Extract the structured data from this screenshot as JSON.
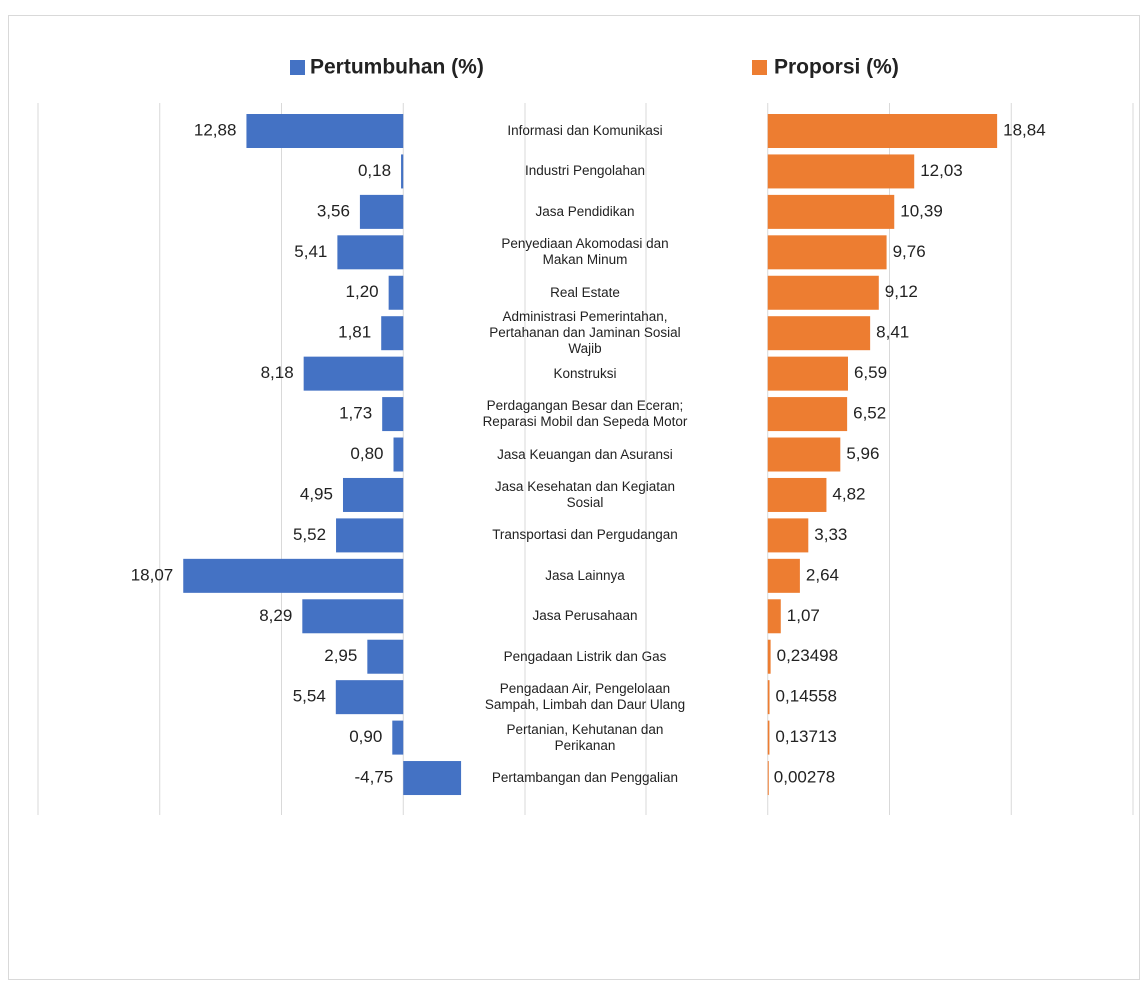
{
  "chart_data": [
    {
      "type": "bar",
      "orientation": "horizontal",
      "xaxis_reversed": true,
      "categories": [
        "Informasi dan Komunikasi",
        "Industri Pengolahan",
        "Jasa Pendidikan",
        "Penyediaan Akomodasi dan Makan Minum",
        "Real Estate",
        "Administrasi Pemerintahan, Pertahanan dan Jaminan Sosial Wajib",
        "Konstruksi",
        "Perdagangan Besar dan Eceran; Reparasi Mobil dan Sepeda Motor",
        "Jasa Keuangan dan Asuransi",
        "Jasa Kesehatan dan Kegiatan Sosial",
        "Transportasi dan Pergudangan",
        "Jasa Lainnya",
        "Jasa Perusahaan",
        "Pengadaan Listrik dan Gas",
        "Pengadaan Air, Pengelolaan Sampah, Limbah dan Daur Ulang",
        "Pertanian, Kehutanan dan Perikanan",
        "Pertambangan dan Penggalian"
      ],
      "series": [
        {
          "name": "Pertumbuhan (%)",
          "color": "#4472c4",
          "values": [
            12.88,
            0.18,
            3.56,
            5.41,
            1.2,
            1.81,
            8.18,
            1.73,
            0.8,
            4.95,
            5.52,
            18.07,
            8.29,
            2.95,
            5.54,
            0.9,
            -4.75
          ],
          "value_labels": [
            "12,88",
            "0,18",
            "3,56",
            "5,41",
            "1,20",
            "1,81",
            "8,18",
            "1,73",
            "0,80",
            "4,95",
            "5,52",
            "18,07",
            "8,29",
            "2,95",
            "5,54",
            "0,90",
            "-4,75"
          ]
        }
      ],
      "xlim": [
        -10,
        30
      ],
      "xticks": [
        -10,
        0,
        10,
        20,
        30
      ],
      "grid": true
    },
    {
      "type": "bar",
      "orientation": "horizontal",
      "xaxis_reversed": false,
      "series": [
        {
          "name": "Proporsi (%)",
          "color": "#ed7d31",
          "values": [
            18.84,
            12.03,
            10.39,
            9.76,
            9.12,
            8.41,
            6.59,
            6.52,
            5.96,
            4.82,
            3.33,
            2.64,
            1.07,
            0.23498,
            0.14558,
            0.13713,
            0.00278
          ],
          "value_labels": [
            "18,84",
            "12,03",
            "10,39",
            "9,76",
            "9,12",
            "8,41",
            "6,59",
            "6,52",
            "5,96",
            "4,82",
            "3,33",
            "2,64",
            "1,07",
            "0,23498",
            "0,14558",
            "0,13713",
            "0,00278"
          ]
        }
      ],
      "xlim": [
        -10,
        30
      ],
      "xticks": [
        -10,
        0,
        10,
        20,
        30
      ],
      "grid": true
    }
  ]
}
